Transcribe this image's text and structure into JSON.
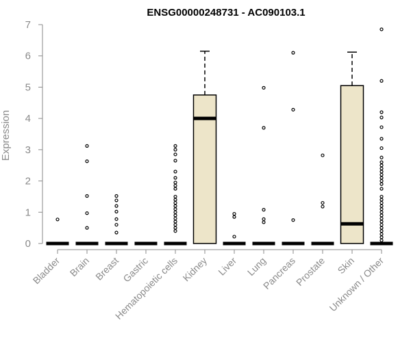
{
  "chart_data": {
    "type": "box",
    "title": "ENSG00000248731 - AC090103.1",
    "ylabel": "Expression",
    "xlabel": "",
    "ylim": [
      0,
      7
    ],
    "yticks": [
      0,
      1,
      2,
      3,
      4,
      5,
      6,
      7
    ],
    "grid": false,
    "legend": "none",
    "colors": {
      "box_fill": "#ede5c9",
      "stroke": "#000000",
      "axis": "#8a8a8a"
    },
    "categories": [
      "Bladder",
      "Brain",
      "Breast",
      "Gastric",
      "Hematopoietic cells",
      "Kidney",
      "Liver",
      "Lung",
      "Pancreas",
      "Prostate",
      "Skin",
      "Unknown / Other"
    ],
    "boxes": [
      {
        "category": "Bladder",
        "q1": 0,
        "median": 0,
        "q3": 0,
        "whisker_low": 0,
        "whisker_high": 0,
        "outliers": [
          0.77
        ]
      },
      {
        "category": "Brain",
        "q1": 0,
        "median": 0,
        "q3": 0,
        "whisker_low": 0,
        "whisker_high": 0,
        "outliers": [
          0.5,
          0.97,
          1.52,
          2.63,
          3.12
        ]
      },
      {
        "category": "Breast",
        "q1": 0,
        "median": 0,
        "q3": 0,
        "whisker_low": 0,
        "whisker_high": 0,
        "outliers": [
          0.35,
          0.6,
          0.78,
          1.02,
          1.2,
          1.38,
          1.52
        ]
      },
      {
        "category": "Gastric",
        "q1": 0,
        "median": 0,
        "q3": 0,
        "whisker_low": 0,
        "whisker_high": 0,
        "outliers": []
      },
      {
        "category": "Hematopoietic cells",
        "q1": 0,
        "median": 0,
        "q3": 0,
        "whisker_low": 0,
        "whisker_high": 0,
        "outliers": [
          0.4,
          0.5,
          0.6,
          0.7,
          0.8,
          0.9,
          1.0,
          1.1,
          1.2,
          1.3,
          1.4,
          1.5,
          1.75,
          1.85,
          1.95,
          2.1,
          2.3,
          2.65,
          2.85,
          3.0,
          3.12
        ]
      },
      {
        "category": "Kidney",
        "q1": 0,
        "median": 4.0,
        "q3": 4.75,
        "whisker_low": 0,
        "whisker_high": 6.15,
        "outliers": []
      },
      {
        "category": "Liver",
        "q1": 0,
        "median": 0,
        "q3": 0,
        "whisker_low": 0,
        "whisker_high": 0,
        "outliers": [
          0.22,
          0.85,
          0.95
        ]
      },
      {
        "category": "Lung",
        "q1": 0,
        "median": 0,
        "q3": 0,
        "whisker_low": 0,
        "whisker_high": 0,
        "outliers": [
          0.68,
          0.78,
          1.08,
          3.7,
          4.98
        ]
      },
      {
        "category": "Pancreas",
        "q1": 0,
        "median": 0,
        "q3": 0,
        "whisker_low": 0,
        "whisker_high": 0,
        "outliers": [
          0.75,
          4.28,
          6.1
        ]
      },
      {
        "category": "Prostate",
        "q1": 0,
        "median": 0,
        "q3": 0,
        "whisker_low": 0,
        "whisker_high": 0,
        "outliers": [
          1.18,
          1.3,
          2.82
        ]
      },
      {
        "category": "Skin",
        "q1": 0,
        "median": 0.63,
        "q3": 5.05,
        "whisker_low": 0,
        "whisker_high": 6.12,
        "outliers": []
      },
      {
        "category": "Unknown / Other",
        "q1": 0,
        "median": 0,
        "q3": 0,
        "whisker_low": 0,
        "whisker_high": 0,
        "outliers": [
          0.1,
          0.2,
          0.3,
          0.4,
          0.5,
          0.6,
          0.7,
          0.8,
          0.9,
          1.0,
          1.1,
          1.2,
          1.3,
          1.4,
          1.5,
          1.75,
          1.9,
          2.0,
          2.1,
          2.2,
          2.3,
          2.4,
          2.5,
          2.6,
          2.75,
          3.05,
          3.35,
          3.72,
          4.03,
          4.2,
          5.2,
          6.85
        ]
      }
    ]
  }
}
